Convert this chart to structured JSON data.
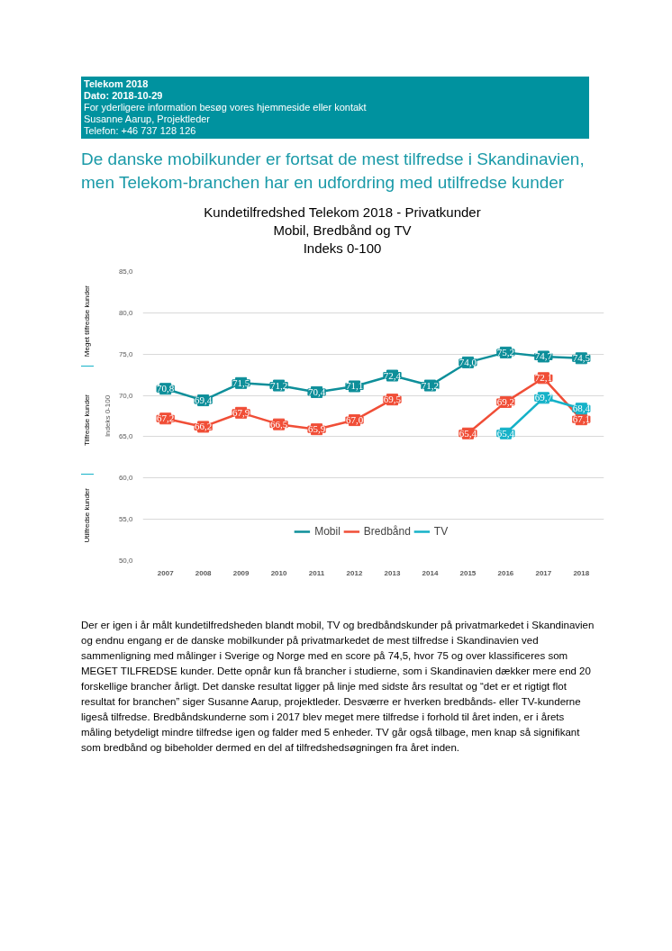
{
  "chart_data": {
    "type": "line",
    "title": "Kundetilfredshed Telekom 2018 - Privatkunder\nMobil, Bredbånd og TV\nIndeks 0-100",
    "ylabel": "Indeks 0-100",
    "annotations": [
      "Telekom 2018",
      "Dato: 2018-10-29",
      "For yderligere information besøg vores hjemmeside eller kontakt",
      "Susanne Aarup, Projektleder",
      "Telefon: +46 737 128 126",
      "De danske mobilkunder er fortsat de mest tilfredse i Skandinavien, men Telekom-branchen har en udfordring med utilfredse kunder",
      "Meget tilfredse kunder",
      "Tilfredse kunder",
      "Utilfredse kunder",
      "Der er igen i år målt kundetilfredsheden blandt mobil, TV og bredbåndskunder på privatmarkedet i Skandinavien og endnu engang er de danske mobilkunder på privatmarkedet de mest tilfredse i Skandinavien ved sammenligning med målinger i Sverige og Norge med en score på 74,5, hvor 75 og over klassificeres som MEGET TILFREDSE kunder. Dette opnår kun få brancher i studierne, som i Skandinavien dækker mere end 20 forskellige brancher årligt. Det danske resultat ligger på linje med sidste års resultat og “det er et rigtigt flot resultat for branchen” siger Susanne Aarup, projektleder. Desværre er hverken bredbånds- eller TV-kunderne ligeså tilfredse. Bredbåndskunderne som i 2017 blev meget mere tilfredse i forhold til året inden, er i årets måling betydeligt mindre tilfredse igen og falder med 5 enheder. TV går også tilbage, men knap så signifikant som bredbånd og bibeholder dermed en del af tilfredshedsøgningen fra året inden."
    ],
    "categories": [
      "2007",
      "2008",
      "2009",
      "2010",
      "2011",
      "2012",
      "2013",
      "2014",
      "2015",
      "2016",
      "2017",
      "2018"
    ],
    "series": [
      {
        "name": "Mobil",
        "color": "#0e8f9a",
        "values": [
          70.8,
          69.4,
          71.5,
          71.2,
          70.4,
          71.1,
          72.4,
          71.2,
          74.0,
          75.2,
          74.7,
          74.5
        ],
        "value_labels": [
          "70,8",
          "69,4",
          "71,5",
          "71,2",
          "70,4",
          "71,1",
          "72,4",
          "71,2",
          "74,0",
          "75,2",
          "74,7",
          "74,5"
        ]
      },
      {
        "name": "Bredbånd",
        "color": "#f04e37",
        "values": [
          67.2,
          66.2,
          67.9,
          66.5,
          65.9,
          67.0,
          69.5,
          null,
          65.4,
          69.2,
          72.1,
          67.1
        ],
        "value_labels": [
          "67,2",
          "66,2",
          "67,9",
          "66,5",
          "65,9",
          "67,0",
          "69,5",
          null,
          "65,4",
          "69,2",
          "72,1",
          "67,1"
        ]
      },
      {
        "name": "TV",
        "color": "#16b2c8",
        "values": [
          null,
          null,
          null,
          null,
          null,
          null,
          null,
          null,
          null,
          65.4,
          69.7,
          68.4
        ],
        "value_labels": [
          null,
          null,
          null,
          null,
          null,
          null,
          null,
          null,
          null,
          "65,4",
          "69,7",
          "68,4"
        ]
      }
    ],
    "ylim": [
      50,
      85
    ],
    "yticks": [
      {
        "value": 50,
        "label": "50,0"
      },
      {
        "value": 55,
        "label": "55,0"
      },
      {
        "value": 60,
        "label": "60,0"
      },
      {
        "value": 65,
        "label": "65,0"
      },
      {
        "value": 70,
        "label": "70,0"
      },
      {
        "value": 75,
        "label": "75,0"
      },
      {
        "value": 80,
        "label": "80,0"
      },
      {
        "value": 85,
        "label": "85,0"
      }
    ],
    "grid": "y",
    "legend": "bottom",
    "marker": "square",
    "line_style": "solid"
  }
}
